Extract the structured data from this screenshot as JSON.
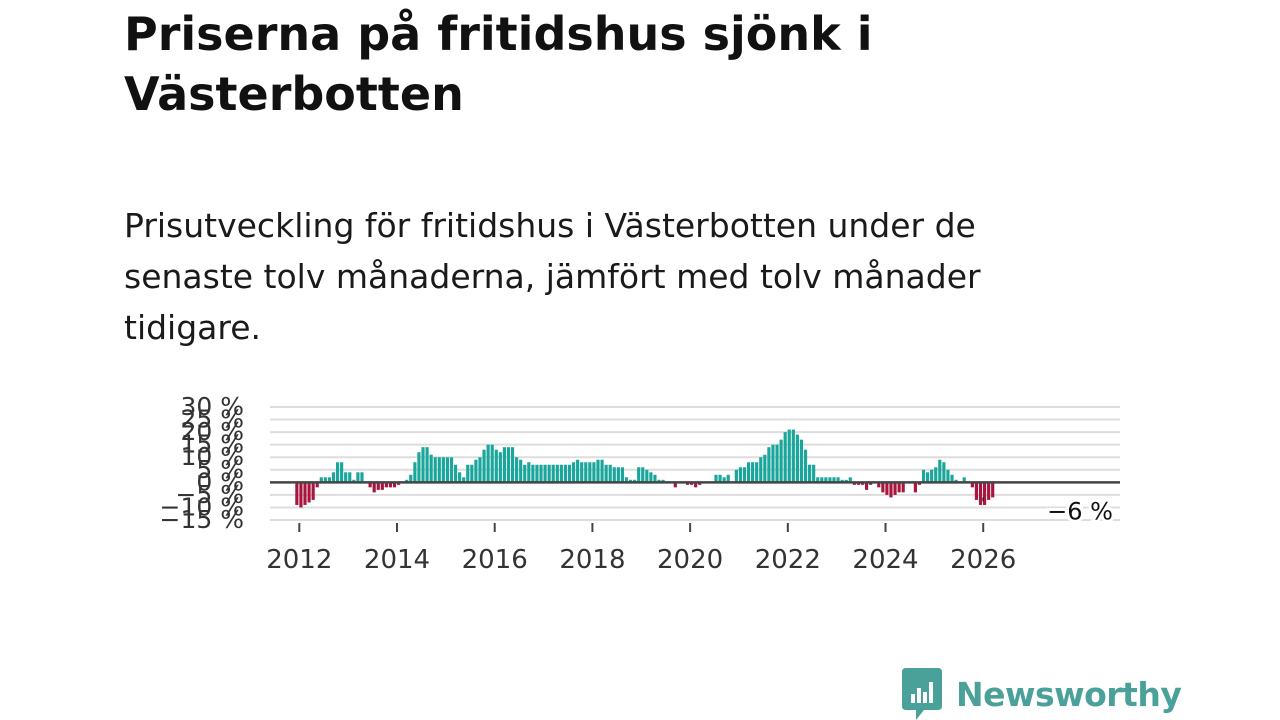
{
  "title": "Priserna på fritidshus sjönk i Västerbotten",
  "subtitle": "Prisutveckling för fritidshus i Västerbotten under de senaste tolv månaderna, jämfört med tolv månader tidigare.",
  "brand": {
    "name": "Newsworthy",
    "color": "#4aa19a"
  },
  "colors": {
    "positive": "#1aa69b",
    "negative": "#a8163f",
    "zero_line": "#444444",
    "grid": "#dddddd",
    "text": "#333333"
  },
  "chart_data": {
    "type": "bar",
    "title": "Priserna på fritidshus sjönk i Västerbotten",
    "ylabel": "",
    "xlabel": "",
    "ylim": [
      -15,
      30
    ],
    "yticks": [
      -15,
      -10,
      -5,
      0,
      5,
      10,
      15,
      20,
      25,
      30
    ],
    "ytick_labels": [
      "−15 %",
      "−10 %",
      "−5 %",
      "0 %",
      "5 %",
      "10 %",
      "15 %",
      "20 %",
      "25 %",
      "30 %"
    ],
    "xticks": [
      2012,
      2014,
      2016,
      2018,
      2020,
      2022,
      2024,
      2026
    ],
    "xlim": [
      2011.4,
      2028.8
    ],
    "grid": true,
    "start": 2011.95,
    "step": 0.0833,
    "values": [
      -9,
      -10,
      -9,
      -8,
      -7,
      -2,
      2,
      2,
      2,
      4,
      8,
      8,
      4,
      4,
      1,
      4,
      4,
      0,
      -2,
      -4,
      -3,
      -3,
      -2,
      -2,
      -2,
      -1,
      0,
      1,
      3,
      8,
      12,
      14,
      14,
      11,
      10,
      10,
      10,
      10,
      10,
      7,
      4,
      2,
      7,
      7,
      9,
      10,
      13,
      15,
      15,
      13,
      12,
      14,
      14,
      14,
      10,
      9,
      7,
      8,
      7,
      7,
      7,
      7,
      7,
      7,
      7,
      7,
      7,
      7,
      8,
      9,
      8,
      8,
      8,
      8,
      9,
      9,
      7,
      7,
      6,
      6,
      6,
      2,
      1,
      1,
      6,
      6,
      5,
      4,
      3,
      1,
      1,
      0,
      0,
      -2,
      0,
      0,
      -1,
      -1,
      -2,
      -1,
      0,
      0,
      0,
      3,
      3,
      2,
      3,
      0,
      5,
      6,
      6,
      8,
      8,
      8,
      10,
      11,
      14,
      15,
      15,
      17,
      20,
      21,
      21,
      19,
      17,
      13,
      7,
      7,
      2,
      2,
      2,
      2,
      2,
      2,
      1,
      1,
      2,
      -1,
      -1,
      -1,
      -3,
      -1,
      0,
      -2,
      -4,
      -5,
      -6,
      -5,
      -4,
      -4,
      0,
      0,
      -4,
      -1,
      5,
      4,
      5,
      6,
      9,
      8,
      5,
      3,
      1,
      0,
      2,
      0,
      -2,
      -7,
      -9,
      -9,
      -7,
      -6
    ],
    "annotation": {
      "label": "−6 %",
      "x": 2026.0,
      "y": -6
    }
  }
}
